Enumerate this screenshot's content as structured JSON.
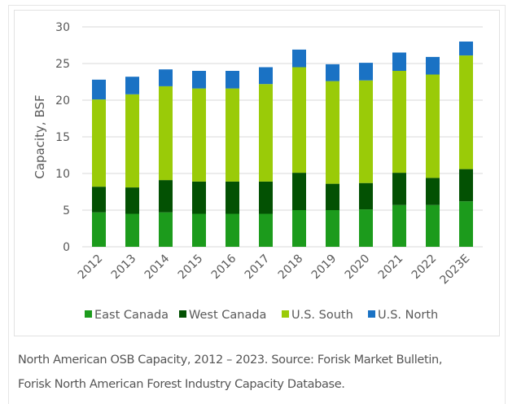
{
  "chart_data": {
    "type": "bar",
    "stacked": true,
    "title": "",
    "xlabel": "",
    "ylabel": "Capacity, BSF",
    "ylim": [
      0,
      30
    ],
    "yticks": [
      0,
      5,
      10,
      15,
      20,
      25,
      30
    ],
    "grid": true,
    "legend_position": "bottom",
    "categories": [
      "2012",
      "2013",
      "2014",
      "2015",
      "2016",
      "2017",
      "2018",
      "2019",
      "2020",
      "2021",
      "2022",
      "2023E"
    ],
    "series": [
      {
        "name": "East Canada",
        "color": "#1c9b1c",
        "values": [
          4.7,
          4.5,
          4.7,
          4.5,
          4.5,
          4.5,
          5.0,
          5.0,
          5.1,
          5.7,
          5.7,
          6.2
        ]
      },
      {
        "name": "West Canada",
        "color": "#035103",
        "values": [
          3.5,
          3.6,
          4.4,
          4.4,
          4.4,
          4.4,
          5.1,
          3.6,
          3.6,
          4.4,
          3.7,
          4.4
        ]
      },
      {
        "name": "U.S. South",
        "color": "#9acb08",
        "values": [
          11.9,
          12.7,
          12.8,
          12.7,
          12.7,
          13.3,
          14.4,
          14.0,
          14.0,
          13.9,
          14.1,
          15.5
        ]
      },
      {
        "name": "U.S. North",
        "color": "#1a72c4",
        "values": [
          2.7,
          2.4,
          2.3,
          2.4,
          2.4,
          2.3,
          2.4,
          2.3,
          2.4,
          2.5,
          2.4,
          1.9
        ]
      }
    ]
  },
  "caption": {
    "line1": "North American OSB Capacity, 2012 – 2023. Source: Forisk Market Bulletin,",
    "line2": "Forisk North American Forest Industry Capacity Database."
  }
}
